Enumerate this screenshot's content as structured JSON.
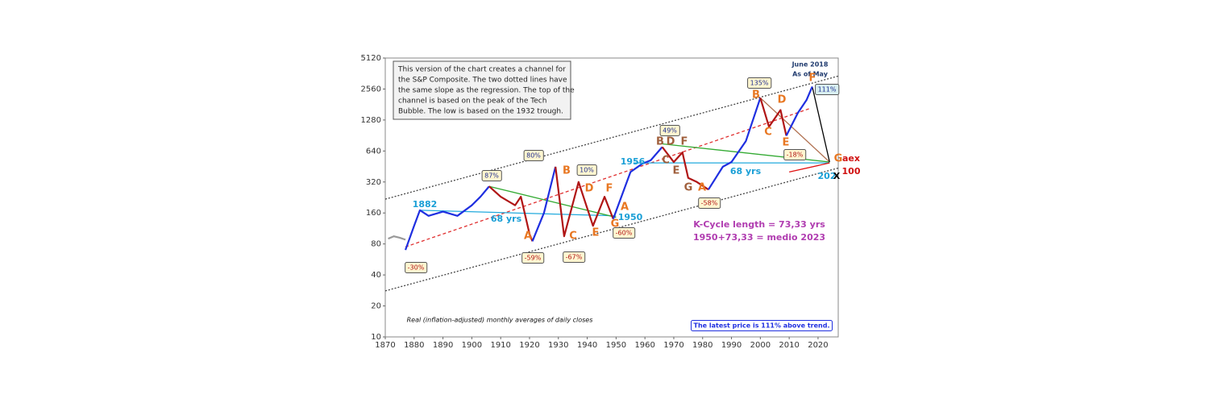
{
  "chart_data": {
    "type": "line",
    "log_scale": true,
    "xlim": [
      1870,
      2027
    ],
    "ylim": [
      10,
      5120
    ],
    "xticks": [
      1870,
      1880,
      1890,
      1900,
      1910,
      1920,
      1930,
      1940,
      1950,
      1960,
      1970,
      1980,
      1990,
      2000,
      2010,
      2020
    ],
    "yticks": [
      10,
      20,
      40,
      80,
      160,
      320,
      640,
      1280,
      2560,
      5120
    ],
    "note": [
      "This version of the chart creates a channel for",
      "the S&P Composite.  The two dotted lines have",
      "the same slope as the regression. The top of the",
      "channel is based on the peak of the Tech",
      "Bubble. The low is based on the 1932 trough."
    ],
    "series": [
      {
        "color": "#999999",
        "x": [
          1871,
          1873,
          1875,
          1877
        ],
        "values": [
          90,
          95,
          92,
          88
        ]
      },
      {
        "color": "#1f2fe0",
        "x": [
          1877,
          1880,
          1882,
          1885,
          1890,
          1895,
          1900,
          1903,
          1906
        ],
        "values": [
          70,
          120,
          170,
          150,
          165,
          150,
          190,
          230,
          290
        ]
      },
      {
        "color": "#b01515",
        "x": [
          1906,
          1910,
          1915,
          1917,
          1920,
          1921
        ],
        "values": [
          290,
          230,
          190,
          230,
          100,
          85
        ]
      },
      {
        "color": "#1f2fe0",
        "x": [
          1921,
          1925,
          1929
        ],
        "values": [
          85,
          160,
          450
        ]
      },
      {
        "color": "#b01515",
        "x": [
          1929,
          1932,
          1937,
          1942,
          1946,
          1949
        ],
        "values": [
          450,
          95,
          320,
          120,
          230,
          140
        ]
      },
      {
        "color": "#1f2fe0",
        "x": [
          1949,
          1955,
          1959,
          1962,
          1966
        ],
        "values": [
          140,
          400,
          480,
          520,
          700
        ]
      },
      {
        "color": "#b01515",
        "x": [
          1966,
          1970,
          1973,
          1975,
          1978,
          1982
        ],
        "values": [
          700,
          500,
          620,
          350,
          320,
          270
        ]
      },
      {
        "color": "#1f2fe0",
        "x": [
          1982,
          1987,
          1990,
          1995,
          2000
        ],
        "values": [
          270,
          450,
          500,
          800,
          2100
        ]
      },
      {
        "color": "#b01515",
        "x": [
          2000,
          2003,
          2007,
          2009
        ],
        "values": [
          2100,
          1100,
          1600,
          900
        ]
      },
      {
        "color": "#1f2fe0",
        "x": [
          2009,
          2013,
          2016,
          2018
        ],
        "values": [
          900,
          1500,
          2000,
          2700
        ]
      }
    ],
    "lines": [
      {
        "color": "#444444",
        "dash": "2,2",
        "x": [
          1870,
          2027
        ],
        "values": [
          218,
          3420
        ]
      },
      {
        "color": "#444444",
        "dash": "2,2",
        "x": [
          1870,
          2027
        ],
        "values": [
          28,
          437
        ]
      },
      {
        "color": "#e03030",
        "dash": "4,3",
        "x": [
          1877,
          2017
        ],
        "values": [
          75,
          1650
        ]
      },
      {
        "color": "#22aadd",
        "dash": "none",
        "x": [
          1882,
          1950
        ],
        "values": [
          170,
          150
        ]
      },
      {
        "color": "#22aadd",
        "dash": "none",
        "x": [
          1956,
          2024
        ],
        "values": [
          490,
          490
        ]
      },
      {
        "color": "#33aa33",
        "dash": "none",
        "x": [
          1906,
          1950
        ],
        "values": [
          290,
          145
        ]
      },
      {
        "color": "#33aa33",
        "dash": "none",
        "x": [
          1966,
          2024
        ],
        "values": [
          750,
          500
        ]
      },
      {
        "color": "#b07050",
        "dash": "none",
        "x": [
          2000,
          2024
        ],
        "values": [
          2100,
          500
        ]
      },
      {
        "color": "#000000",
        "dash": "none",
        "x": [
          2018,
          2024
        ],
        "values": [
          2700,
          500
        ]
      },
      {
        "color": "#e01010",
        "dash": "none",
        "x": [
          2010,
          2024
        ],
        "values": [
          400,
          490
        ]
      }
    ],
    "annotations": [
      {
        "text": "June 2018",
        "color": "#1f3a6e"
      },
      {
        "text": "As of May",
        "color": "#1f3a6e"
      },
      {
        "text": "87%",
        "color": "#1f2f90"
      },
      {
        "text": "80%",
        "color": "#1f2f90"
      },
      {
        "text": "10%",
        "color": "#1f2f90"
      },
      {
        "text": "49%",
        "color": "#1f2f90"
      },
      {
        "text": "135%",
        "color": "#1f2f90"
      },
      {
        "text": "111%",
        "color": "#1f2f90"
      },
      {
        "text": "-30%",
        "color": "#b01515"
      },
      {
        "text": "-59%",
        "color": "#b01515"
      },
      {
        "text": "-67%",
        "color": "#b01515"
      },
      {
        "text": "-60%",
        "color": "#b01515"
      },
      {
        "text": "-58%",
        "color": "#b01515"
      },
      {
        "text": "-18%",
        "color": "#b01515"
      },
      {
        "text": "A",
        "color": "#e87722"
      },
      {
        "text": "B",
        "color": "#e87722"
      },
      {
        "text": "C",
        "color": "#e87722"
      },
      {
        "text": "D",
        "color": "#e87722"
      },
      {
        "text": "E",
        "color": "#e87722"
      },
      {
        "text": "F",
        "color": "#e87722"
      },
      {
        "text": "G",
        "color": "#e87722"
      },
      {
        "text": "A",
        "color": "#e87722"
      },
      {
        "text": "B",
        "color": "#a0603d"
      },
      {
        "text": "D",
        "color": "#a0603d"
      },
      {
        "text": "F",
        "color": "#a0603d"
      },
      {
        "text": "C",
        "color": "#a0603d"
      },
      {
        "text": "E",
        "color": "#a0603d"
      },
      {
        "text": "G",
        "color": "#a0603d"
      },
      {
        "text": "A",
        "color": "#e87722"
      },
      {
        "text": "B",
        "color": "#e87722"
      },
      {
        "text": "C",
        "color": "#e87722"
      },
      {
        "text": "D",
        "color": "#e87722"
      },
      {
        "text": "E",
        "color": "#e87722"
      },
      {
        "text": "F",
        "color": "#e87722"
      },
      {
        "text": "G",
        "color": "#e87722"
      },
      {
        "text": "1882",
        "color": "#1a9fd6"
      },
      {
        "text": "68 yrs",
        "color": "#1a9fd6"
      },
      {
        "text": "1950",
        "color": "#1a9fd6"
      },
      {
        "text": "1956",
        "color": "#1a9fd6"
      },
      {
        "text": "68 yrs",
        "color": "#1a9fd6"
      },
      {
        "text": "202",
        "color": "#1a9fd6"
      },
      {
        "text": "X",
        "color": "#000000"
      },
      {
        "text": "aex",
        "color": "#d01010"
      },
      {
        "text": "100",
        "color": "#d01010"
      },
      {
        "text": "K-Cycle length = 73,33 yrs",
        "color": "#b03cb0"
      },
      {
        "text": "1950+73,33 = medio 2023",
        "color": "#b03cb0"
      },
      {
        "text": "Real (inflation-adjusted) monthly averages of daily closes",
        "color": "#111111"
      },
      {
        "text": "The latest price is 111% above trend.",
        "color": "#1f2fe0"
      }
    ]
  }
}
